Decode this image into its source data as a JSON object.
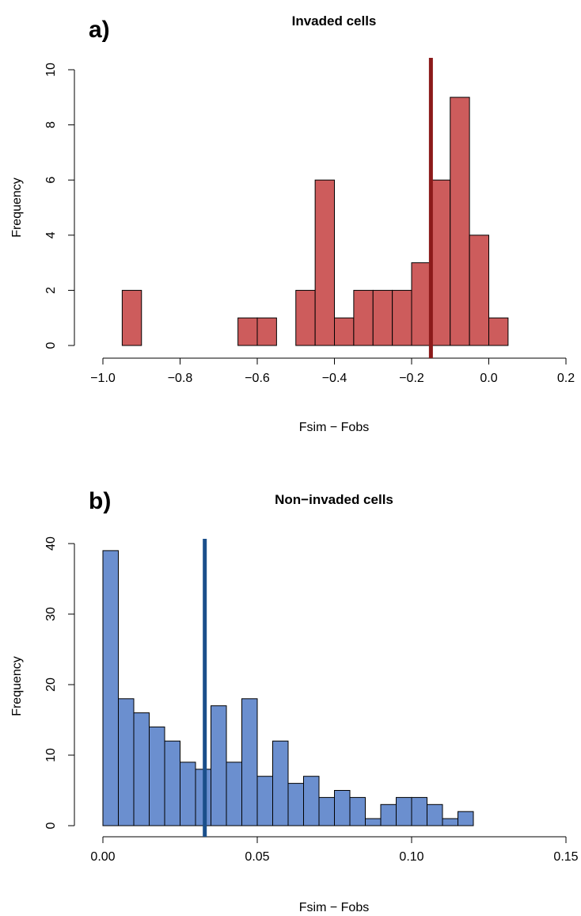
{
  "chart_data": [
    {
      "type": "bar",
      "panel_label": "a)",
      "title": "Invaded cells",
      "xlabel": "Fsim − Fobs",
      "ylabel": "Frequency",
      "xlim": [
        -1.0,
        0.2
      ],
      "ylim": [
        0,
        10
      ],
      "x_ticks": [
        -1.0,
        -0.8,
        -0.6,
        -0.4,
        -0.2,
        0.0,
        0.2
      ],
      "x_tick_labels": [
        "−1.0",
        "−0.8",
        "−0.6",
        "−0.4",
        "−0.2",
        "0.0",
        "0.2"
      ],
      "y_ticks": [
        0,
        2,
        4,
        6,
        8,
        10
      ],
      "y_tick_labels": [
        "0",
        "2",
        "4",
        "6",
        "8",
        "10"
      ],
      "bin_start": -0.95,
      "bin_width": 0.05,
      "values": [
        2,
        0,
        0,
        0,
        0,
        0,
        1,
        1,
        0,
        2,
        6,
        1,
        2,
        2,
        2,
        3,
        6,
        9,
        4,
        1
      ],
      "bar_color": "#cd5c5c",
      "reference_line": {
        "x": -0.15,
        "color": "#8b1a1a"
      },
      "grid": false
    },
    {
      "type": "bar",
      "panel_label": "b)",
      "title": "Non−invaded cells",
      "xlabel": "Fsim − Fobs",
      "ylabel": "Frequency",
      "xlim": [
        0.0,
        0.15
      ],
      "ylim": [
        0,
        40
      ],
      "x_ticks": [
        0.0,
        0.05,
        0.1,
        0.15
      ],
      "x_tick_labels": [
        "0.00",
        "0.05",
        "0.10",
        "0.15"
      ],
      "y_ticks": [
        0,
        10,
        20,
        30,
        40
      ],
      "y_tick_labels": [
        "0",
        "10",
        "20",
        "30",
        "40"
      ],
      "bin_start": 0.0,
      "bin_width": 0.005,
      "values": [
        39,
        18,
        16,
        14,
        12,
        9,
        8,
        17,
        9,
        18,
        7,
        12,
        6,
        7,
        4,
        5,
        4,
        1,
        3,
        4,
        4,
        3,
        1,
        2
      ],
      "bar_color": "#6b8fcf",
      "reference_line": {
        "x": 0.033,
        "color": "#1a4f8b"
      },
      "grid": false
    }
  ]
}
